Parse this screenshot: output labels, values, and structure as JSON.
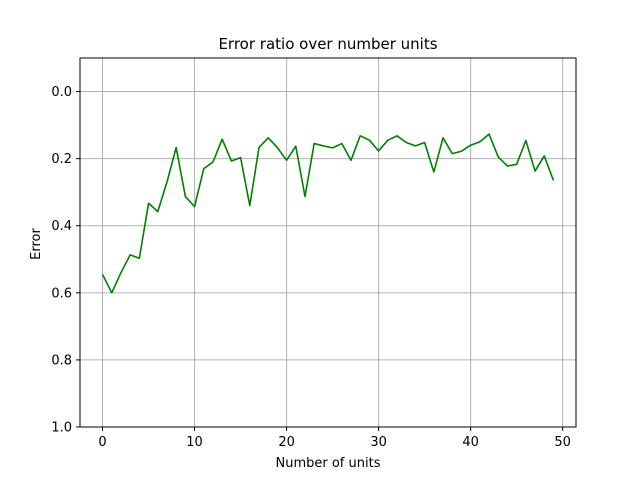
{
  "chart_data": {
    "type": "line",
    "title": "Error ratio over number units",
    "xlabel": "Number of units",
    "ylabel": "Error",
    "xlim": [
      -2.45,
      51.45
    ],
    "ylim": [
      1.0,
      -0.1
    ],
    "y_inverted": true,
    "xticks": [
      0,
      10,
      20,
      30,
      40,
      50
    ],
    "yticks": [
      0.0,
      0.2,
      0.4,
      0.6,
      0.8,
      1.0
    ],
    "xtick_labels": [
      "0",
      "10",
      "20",
      "30",
      "40",
      "50"
    ],
    "ytick_labels": [
      "0.0",
      "0.2",
      "0.4",
      "0.6",
      "0.8",
      "1.0"
    ],
    "grid": true,
    "colors": {
      "line": "#008000",
      "grid": "#b0b0b0",
      "axes": "#000000"
    },
    "series": [
      {
        "x": [
          0,
          1,
          2,
          3,
          4,
          5,
          6,
          7,
          8,
          9,
          10,
          11,
          12,
          13,
          14,
          15,
          16,
          17,
          18,
          19,
          20,
          21,
          22,
          23,
          24,
          25,
          26,
          27,
          28,
          29,
          30,
          31,
          32,
          33,
          34,
          35,
          36,
          37,
          38,
          39,
          40,
          41,
          42,
          43,
          44,
          45,
          46,
          47,
          48,
          49
        ],
        "values": [
          0.545,
          0.6,
          0.54,
          0.487,
          0.497,
          0.333,
          0.358,
          0.27,
          0.167,
          0.313,
          0.343,
          0.23,
          0.21,
          0.142,
          0.207,
          0.197,
          0.34,
          0.167,
          0.138,
          0.167,
          0.205,
          0.163,
          0.313,
          0.155,
          0.162,
          0.168,
          0.155,
          0.205,
          0.132,
          0.145,
          0.177,
          0.145,
          0.132,
          0.152,
          0.162,
          0.152,
          0.24,
          0.138,
          0.185,
          0.178,
          0.16,
          0.15,
          0.127,
          0.195,
          0.222,
          0.217,
          0.146,
          0.237,
          0.192,
          0.265
        ]
      }
    ]
  }
}
